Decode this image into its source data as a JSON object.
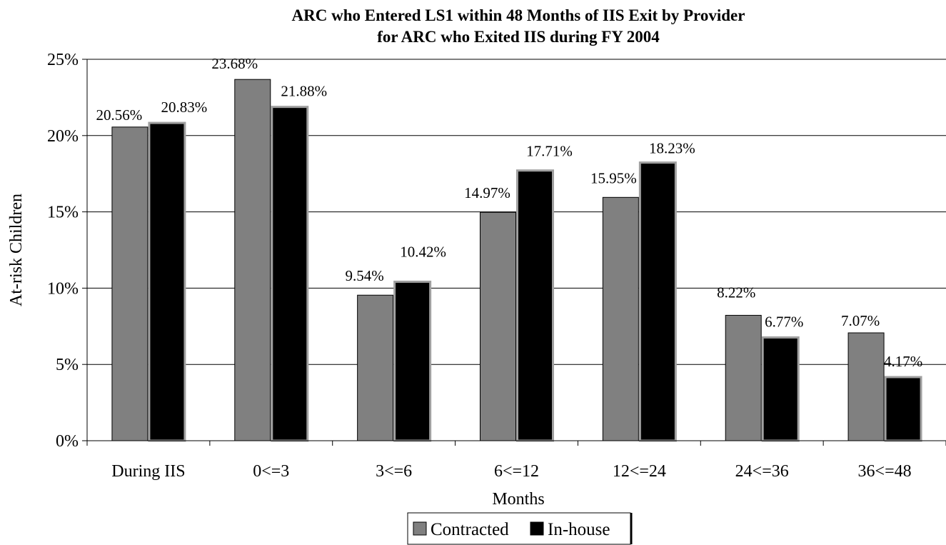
{
  "chart_data": {
    "type": "bar",
    "title": "ARC who Entered LS1 within 48 Months of IIS Exit by Provider",
    "subtitle": "for ARC who Exited IIS during FY 2004",
    "xlabel": "Months",
    "ylabel": "At-risk Children",
    "categories": [
      "During IIS",
      "0<=3",
      "3<=6",
      "6<=12",
      "12<=24",
      "24<=36",
      "36<=48"
    ],
    "series": [
      {
        "name": "Contracted",
        "color": "#808080",
        "values": [
          20.56,
          23.68,
          9.54,
          14.97,
          15.95,
          8.22,
          7.07
        ],
        "labels": [
          "20.56%",
          "23.68%",
          "9.54%",
          "14.97%",
          "15.95%",
          "8.22%",
          "7.07%"
        ]
      },
      {
        "name": "In-house",
        "color": "#000000",
        "values": [
          20.83,
          21.88,
          10.42,
          17.71,
          18.23,
          6.77,
          4.17
        ],
        "labels": [
          "20.83%",
          "21.88%",
          "10.42%",
          "17.71%",
          "18.23%",
          "6.77%",
          "4.17%"
        ]
      }
    ],
    "ylim": [
      0,
      25
    ],
    "yticks": [
      "0%",
      "5%",
      "10%",
      "15%",
      "20%",
      "25%"
    ],
    "ytick_values": [
      0,
      5,
      10,
      15,
      20,
      25
    ],
    "grid": true,
    "legend_position": "bottom"
  }
}
